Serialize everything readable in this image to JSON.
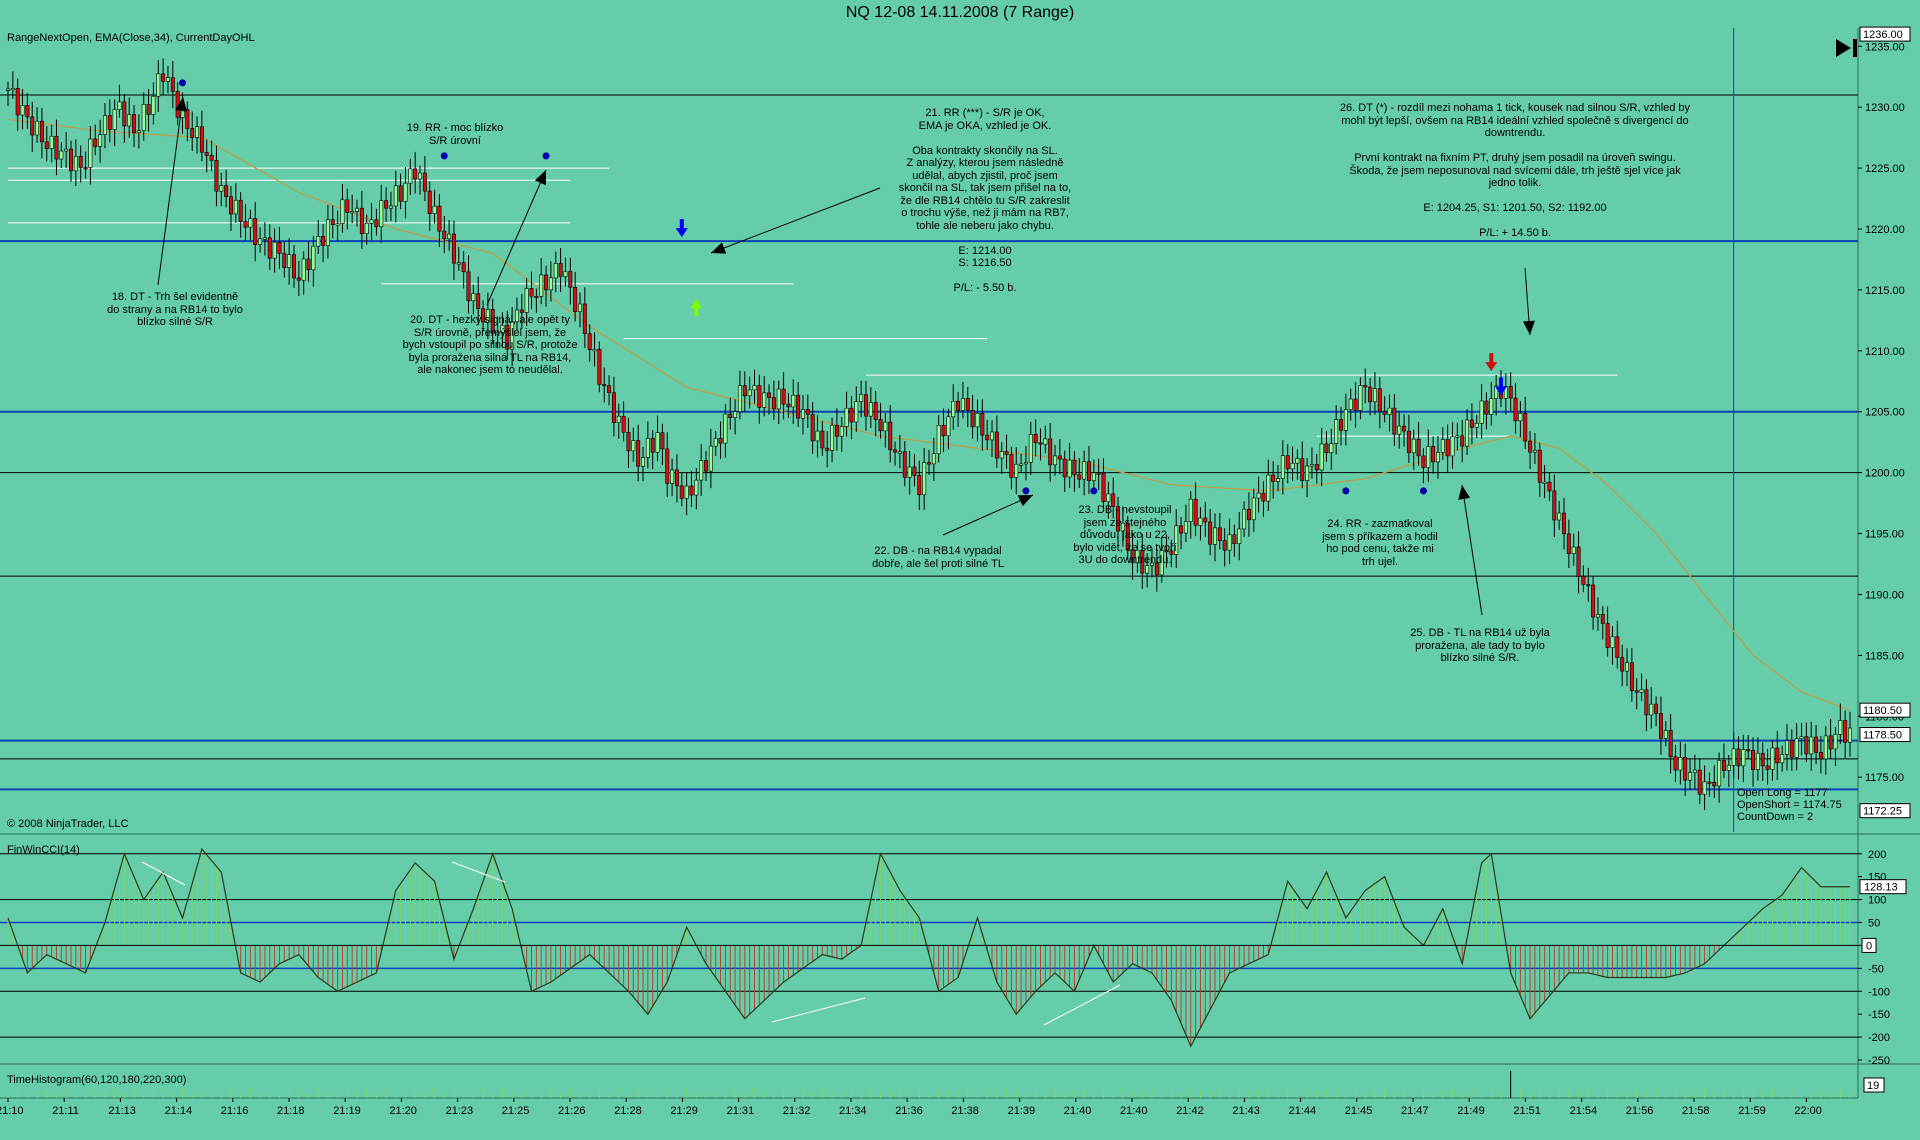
{
  "window": {
    "title": "NQ 12-08  14.11.2008 (7 Range)"
  },
  "price_panel": {
    "indicator_label": "RangeNextOpen, EMA(Close,34), CurrentDayOHL",
    "copyright": "© 2008 NinjaTrader, LLC",
    "order_info": [
      "Open Long = 1177",
      "OpenShort = 1174.75",
      "CountDown = 2"
    ],
    "current_labels": [
      "1236.00",
      "1180.50",
      "1178.50",
      "1172.25"
    ],
    "go_end_icon": "skip-to-end-icon"
  },
  "cci_panel": {
    "label": "FinWinCCI(14)",
    "current_value": "128.13",
    "zero_label": "0"
  },
  "hist_panel": {
    "label": "TimeHistogram(60,120,180,220,300)",
    "current_value": "19"
  },
  "annotations": [
    {
      "id": "n18",
      "text": "18. DT - Trh šel evidentně\ndo strany a na RB14 to bylo\nblízko silné S/R"
    },
    {
      "id": "n19",
      "text": "19. RR - moc blízko\nS/R úrovní"
    },
    {
      "id": "n20",
      "text": "20. DT - hezký signál, ale opět ty\nS/R úrovně, přemýšlel jsem, že\nbych vstoupil po silnou S/R, protože\nbyla proražena silná TL na  RB14,\nale nakonec jsem to neudělal."
    },
    {
      "id": "n21",
      "text": "21. RR (***) - S/R je OK,\nEMA je OKA, vzhled je OK.\n\nOba kontrakty skončily na SL.\nZ analýzy, kterou jsem následně\nudělal, abych zjistil, proč jsem\nskončil na SL, tak jsem přišel na to,\nže dle RB14 chtělo tu S/R zakreslit\no trochu výše, než ji mám na RB7,\ntohle ale neberu jako chybu.\n\nE: 1214.00\nS: 1216.50\n\nP/L: - 5.50 b."
    },
    {
      "id": "n22",
      "text": "22. DB - na RB14 vypadal\ndobře, ale šel proti silné TL"
    },
    {
      "id": "n23",
      "text": "23. DB - nevstoupil\njsem ze stejného\ndůvodu, jako u 22,\nbylo vidět, že se tvoří\n3U do downtrendu."
    },
    {
      "id": "n24",
      "text": "24. RR - zazmatkoval\njsem s příkazem a hodil\nho pod cenu, takže mi\ntrh ujel."
    },
    {
      "id": "n25",
      "text": "25. DB - TL na RB14 už byla\nproražena, ale tady to bylo\nblízko silné S/R."
    },
    {
      "id": "n26",
      "text": "26. DT (*) - rozdíl mezi nohama 1 tick, kousek nad silnou S/R, vzhled by\nmohl být lepší, ovšem na RB14 ideální vzhled společně s divergencí do\ndowntrendu.\n\nPrvní kontrakt na fixním PT, druhý jsem posadil na úroveň swingu.\nŠkoda, že jsem neposunoval nad svícemi dále, trh ještě sjel více jak\njedno tolik.\n\nE: 1204.25, S1: 1201.50, S2: 1192.00\n\nP/L: + 14.50 b."
    }
  ],
  "colors": {
    "background": "#66CDAA",
    "up_candle": "#98FB98",
    "down_candle": "#CC1111",
    "ema": "#B8A04A",
    "sr_line": "#0A44B8",
    "level_line": "#FFFFFF",
    "cci_line": "#2A3A1A"
  },
  "chart_data": [
    {
      "type": "candlestick",
      "title": "NQ 12-08  14.11.2008 (7 Range)",
      "instrument": "NQ 12-08",
      "ylim": [
        1170.5,
        1236.5
      ],
      "y_ticks": [
        1175.0,
        1180.0,
        1185.0,
        1190.0,
        1195.0,
        1200.0,
        1205.0,
        1210.0,
        1215.0,
        1220.0,
        1225.0,
        1230.0,
        1235.0
      ],
      "x_ticks": [
        "21:10",
        "21:11",
        "21:13",
        "21:14",
        "21:16",
        "21:18",
        "21:19",
        "21:20",
        "21:23",
        "21:25",
        "21:26",
        "21:28",
        "21:29",
        "21:31",
        "21:32",
        "21:34",
        "21:36",
        "21:38",
        "21:39",
        "21:40",
        "21:40",
        "21:42",
        "21:43",
        "21:44",
        "21:45",
        "21:47",
        "21:49",
        "21:51",
        "21:54",
        "21:56",
        "21:58",
        "21:59",
        "22:00"
      ],
      "close_path": [
        [
          0,
          1231.5
        ],
        [
          4,
          1229
        ],
        [
          8,
          1227
        ],
        [
          12,
          1226
        ],
        [
          15,
          1225
        ],
        [
          19,
          1228
        ],
        [
          23,
          1230
        ],
        [
          26,
          1228
        ],
        [
          29,
          1230
        ],
        [
          32,
          1233
        ],
        [
          36,
          1229
        ],
        [
          40,
          1227
        ],
        [
          44,
          1223
        ],
        [
          48,
          1221
        ],
        [
          52,
          1219
        ],
        [
          56,
          1218
        ],
        [
          60,
          1216
        ],
        [
          64,
          1219
        ],
        [
          68,
          1221
        ],
        [
          70,
          1222
        ],
        [
          74,
          1220
        ],
        [
          78,
          1222
        ],
        [
          81,
          1223
        ],
        [
          84,
          1225
        ],
        [
          88,
          1221
        ],
        [
          92,
          1218
        ],
        [
          96,
          1214
        ],
        [
          100,
          1212
        ],
        [
          103,
          1211
        ],
        [
          106,
          1214
        ],
        [
          109,
          1215
        ],
        [
          112,
          1216
        ],
        [
          114,
          1217
        ],
        [
          118,
          1213
        ],
        [
          122,
          1208
        ],
        [
          126,
          1204
        ],
        [
          130,
          1201
        ],
        [
          134,
          1203
        ],
        [
          136,
          1200
        ],
        [
          140,
          1198
        ],
        [
          144,
          1201
        ],
        [
          148,
          1204
        ],
        [
          152,
          1207
        ],
        [
          156,
          1206
        ],
        [
          160,
          1206
        ],
        [
          164,
          1205
        ],
        [
          168,
          1202
        ],
        [
          172,
          1204
        ],
        [
          176,
          1206
        ],
        [
          180,
          1204
        ],
        [
          184,
          1201
        ],
        [
          188,
          1199
        ],
        [
          192,
          1203
        ],
        [
          196,
          1206
        ],
        [
          200,
          1204
        ],
        [
          204,
          1202
        ],
        [
          208,
          1200
        ],
        [
          212,
          1203
        ],
        [
          216,
          1201
        ],
        [
          220,
          1200
        ],
        [
          224,
          1200
        ],
        [
          228,
          1197
        ],
        [
          232,
          1193
        ],
        [
          236,
          1192
        ],
        [
          240,
          1194
        ],
        [
          244,
          1197
        ],
        [
          248,
          1195
        ],
        [
          252,
          1194
        ],
        [
          256,
          1197
        ],
        [
          260,
          1199
        ],
        [
          264,
          1201
        ],
        [
          268,
          1200
        ],
        [
          272,
          1202
        ],
        [
          276,
          1205
        ],
        [
          280,
          1207
        ],
        [
          284,
          1205
        ],
        [
          288,
          1203
        ],
        [
          292,
          1201
        ],
        [
          296,
          1202
        ],
        [
          300,
          1203
        ],
        [
          304,
          1205
        ],
        [
          308,
          1207
        ],
        [
          310,
          1206
        ],
        [
          313,
          1203
        ],
        [
          316,
          1200
        ],
        [
          320,
          1196
        ],
        [
          324,
          1192
        ],
        [
          328,
          1188
        ],
        [
          332,
          1185
        ],
        [
          336,
          1182
        ],
        [
          340,
          1180
        ],
        [
          344,
          1176
        ],
        [
          348,
          1175
        ],
        [
          350,
          1174
        ],
        [
          354,
          1176
        ],
        [
          358,
          1177
        ],
        [
          362,
          1176
        ],
        [
          366,
          1177
        ],
        [
          370,
          1178
        ],
        [
          374,
          1177
        ],
        [
          378,
          1179
        ],
        [
          380,
          1178.5
        ]
      ],
      "ema_path": [
        [
          0,
          1229
        ],
        [
          20,
          1228
        ],
        [
          40,
          1227.5
        ],
        [
          60,
          1223
        ],
        [
          80,
          1220
        ],
        [
          100,
          1218
        ],
        [
          120,
          1212
        ],
        [
          140,
          1207
        ],
        [
          160,
          1205
        ],
        [
          180,
          1203
        ],
        [
          200,
          1202
        ],
        [
          220,
          1201
        ],
        [
          240,
          1199
        ],
        [
          260,
          1198.5
        ],
        [
          280,
          1199.5
        ],
        [
          300,
          1202
        ],
        [
          310,
          1203
        ],
        [
          320,
          1202
        ],
        [
          330,
          1199
        ],
        [
          340,
          1195
        ],
        [
          350,
          1190
        ],
        [
          360,
          1185
        ],
        [
          370,
          1182
        ],
        [
          380,
          1180.5
        ]
      ],
      "sr_levels_blue": [
        1219.0,
        1205.0,
        1178.0,
        1174.0
      ],
      "sr_levels_black": [
        1231.0,
        1200.0,
        1191.5,
        1176.5
      ],
      "white_levels": [
        [
          1225.0,
          0,
          124
        ],
        [
          1224.0,
          0,
          116
        ],
        [
          1220.5,
          0,
          116
        ],
        [
          1215.5,
          77,
          162
        ],
        [
          1211.0,
          127,
          202
        ],
        [
          1208.0,
          177,
          332
        ],
        [
          1203.0,
          270,
          310
        ]
      ],
      "vertical_marker_x": 356,
      "signals": [
        {
          "type": "down",
          "bar": 139,
          "price": 1219.5,
          "color": "#0000FF"
        },
        {
          "type": "down",
          "bar": 306,
          "price": 1208.5,
          "color": "#CC1111"
        },
        {
          "type": "down",
          "bar": 308,
          "price": 1206.5,
          "color": "#0000FF"
        },
        {
          "type": "up",
          "bar": 142,
          "price": 1214.0,
          "color": "#7CFC00"
        },
        {
          "type": "dot",
          "bar": 36,
          "price": 1232.0,
          "color": "#0000AA"
        },
        {
          "type": "dot",
          "bar": 90,
          "price": 1226.0,
          "color": "#0000AA"
        },
        {
          "type": "dot",
          "bar": 111,
          "price": 1226.0,
          "color": "#0000AA"
        },
        {
          "type": "dot",
          "bar": 210,
          "price": 1198.5,
          "color": "#0000AA"
        },
        {
          "type": "dot",
          "bar": 224,
          "price": 1198.5,
          "color": "#0000AA"
        },
        {
          "type": "dot",
          "bar": 276,
          "price": 1198.5,
          "color": "#0000AA"
        },
        {
          "type": "dot",
          "bar": 292,
          "price": 1198.5,
          "color": "#0000AA"
        }
      ]
    },
    {
      "type": "area",
      "title": "FinWinCCI(14)",
      "ylim": [
        -250,
        230
      ],
      "y_ticks": [
        -250,
        -200,
        -150,
        -100,
        -50,
        0,
        50,
        100,
        150,
        200
      ],
      "reference_lines": [
        200,
        100,
        -100,
        -200
      ],
      "cci_path": [
        [
          0,
          60
        ],
        [
          4,
          -60
        ],
        [
          8,
          -20
        ],
        [
          12,
          -40
        ],
        [
          16,
          -60
        ],
        [
          20,
          50
        ],
        [
          24,
          200
        ],
        [
          28,
          100
        ],
        [
          32,
          160
        ],
        [
          36,
          60
        ],
        [
          40,
          210
        ],
        [
          44,
          160
        ],
        [
          48,
          -60
        ],
        [
          52,
          -80
        ],
        [
          56,
          -40
        ],
        [
          60,
          -20
        ],
        [
          64,
          -70
        ],
        [
          68,
          -100
        ],
        [
          72,
          -80
        ],
        [
          76,
          -60
        ],
        [
          80,
          120
        ],
        [
          84,
          180
        ],
        [
          88,
          140
        ],
        [
          92,
          -30
        ],
        [
          96,
          80
        ],
        [
          100,
          200
        ],
        [
          104,
          80
        ],
        [
          108,
          -100
        ],
        [
          112,
          -80
        ],
        [
          116,
          -50
        ],
        [
          120,
          -20
        ],
        [
          124,
          -60
        ],
        [
          128,
          -100
        ],
        [
          132,
          -150
        ],
        [
          136,
          -80
        ],
        [
          140,
          40
        ],
        [
          144,
          -40
        ],
        [
          148,
          -100
        ],
        [
          152,
          -160
        ],
        [
          156,
          -120
        ],
        [
          160,
          -80
        ],
        [
          164,
          -50
        ],
        [
          168,
          -20
        ],
        [
          172,
          -30
        ],
        [
          176,
          0
        ],
        [
          180,
          200
        ],
        [
          184,
          120
        ],
        [
          188,
          60
        ],
        [
          192,
          -100
        ],
        [
          196,
          -70
        ],
        [
          200,
          60
        ],
        [
          204,
          -80
        ],
        [
          208,
          -150
        ],
        [
          212,
          -100
        ],
        [
          216,
          -60
        ],
        [
          220,
          -100
        ],
        [
          224,
          0
        ],
        [
          228,
          -80
        ],
        [
          232,
          -40
        ],
        [
          236,
          -60
        ],
        [
          240,
          -120
        ],
        [
          244,
          -220
        ],
        [
          248,
          -140
        ],
        [
          252,
          -60
        ],
        [
          256,
          -40
        ],
        [
          260,
          -20
        ],
        [
          264,
          140
        ],
        [
          268,
          80
        ],
        [
          272,
          160
        ],
        [
          276,
          60
        ],
        [
          280,
          120
        ],
        [
          284,
          150
        ],
        [
          288,
          40
        ],
        [
          292,
          0
        ],
        [
          296,
          80
        ],
        [
          300,
          -40
        ],
        [
          304,
          180
        ],
        [
          306,
          200
        ],
        [
          310,
          -60
        ],
        [
          314,
          -160
        ],
        [
          318,
          -110
        ],
        [
          322,
          -60
        ],
        [
          326,
          -60
        ],
        [
          330,
          -70
        ],
        [
          334,
          -70
        ],
        [
          338,
          -70
        ],
        [
          342,
          -70
        ],
        [
          346,
          -60
        ],
        [
          350,
          -40
        ],
        [
          354,
          0
        ],
        [
          358,
          40
        ],
        [
          362,
          80
        ],
        [
          366,
          110
        ],
        [
          370,
          170
        ],
        [
          374,
          128
        ]
      ]
    },
    {
      "type": "bar",
      "title": "TimeHistogram(60,120,180,220,300)",
      "current_value": 19
    }
  ]
}
